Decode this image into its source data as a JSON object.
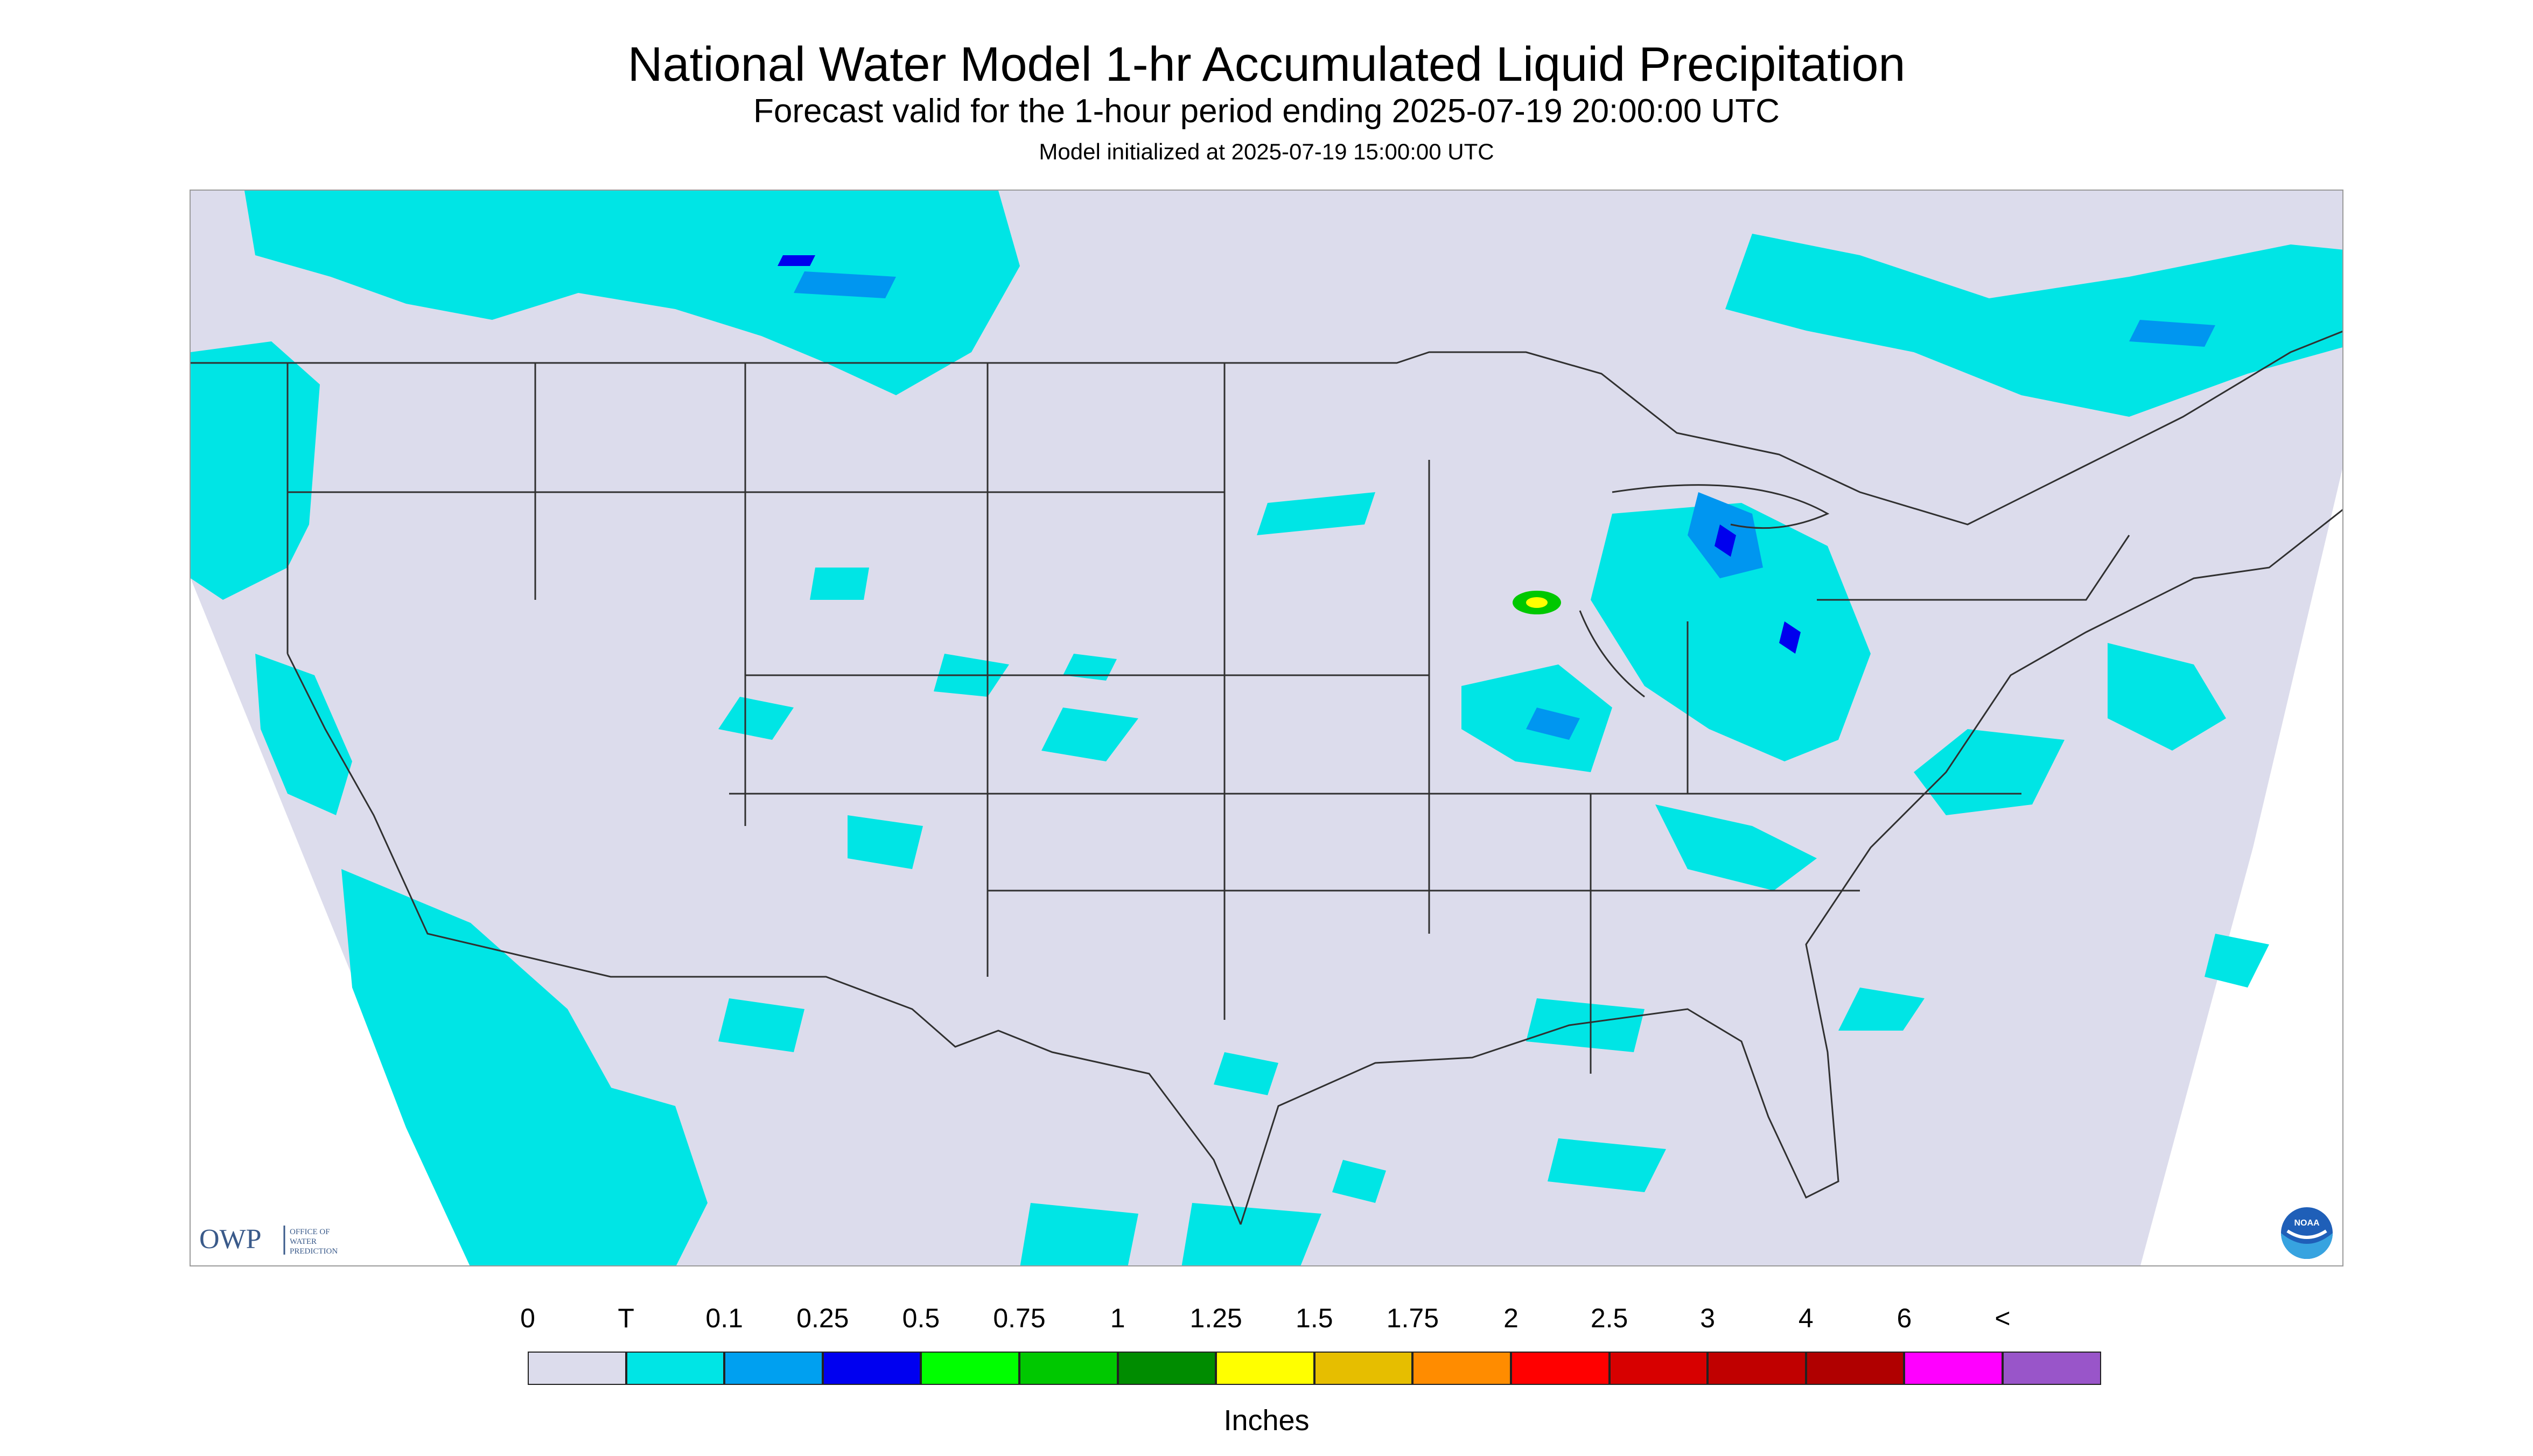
{
  "header": {
    "title": "National Water Model 1-hr Accumulated Liquid Precipitation",
    "subtitle": "Forecast valid for the 1-hour period ending 2025-07-19 20:00:00 UTC",
    "init_text": "Model initialized at 2025-07-19 15:00:00 UTC"
  },
  "logos": {
    "owp_letters": "OWP",
    "owp_name_lines": [
      "OFFICE OF",
      "WATER",
      "PREDICTION"
    ],
    "noaa_letters": "NOAA"
  },
  "colors": {
    "no_data_background": "#dcdcec",
    "boundary_lines": "#303030",
    "trace": "#00e5e5",
    "light": "#0096f0",
    "moderate": "#0000ee",
    "heavy_green": "#00c800",
    "heavy_yellow": "#ffff00"
  },
  "legend": {
    "labels": [
      "0",
      "T",
      "0.1",
      "0.25",
      "0.5",
      "0.75",
      "1",
      "1.25",
      "1.5",
      "1.75",
      "2",
      "2.5",
      "3",
      "4",
      "6",
      "<"
    ],
    "colors": [
      "#dcdcec",
      "#00e5e5",
      "#00a0f0",
      "#0000f0",
      "#00ff00",
      "#00c800",
      "#008c00",
      "#ffff00",
      "#e6be00",
      "#ff8c00",
      "#ff0000",
      "#d70000",
      "#c00000",
      "#b00000",
      "#ff00ff",
      "#9955c9"
    ],
    "units_label": "Inches"
  }
}
